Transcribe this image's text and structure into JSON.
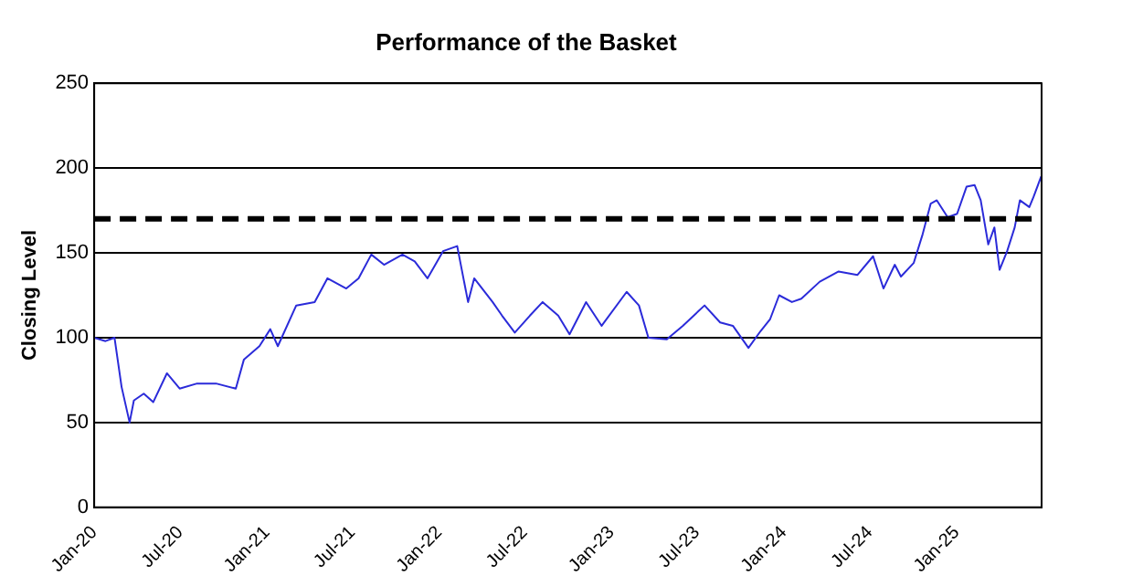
{
  "chart_data": {
    "type": "line",
    "title": "Performance of the Basket",
    "ylabel": "Closing Level",
    "x": [
      "2020-01-01",
      "2020-01-25",
      "2020-02-13",
      "2020-02-28",
      "2020-03-16",
      "2020-03-25",
      "2020-04-15",
      "2020-05-05",
      "2020-06-03",
      "2020-06-30",
      "2020-08-06",
      "2020-09-15",
      "2020-10-27",
      "2020-11-13",
      "2020-12-16",
      "2021-01-08",
      "2021-01-24",
      "2021-03-04",
      "2021-04-12",
      "2021-05-09",
      "2021-06-18",
      "2021-07-14",
      "2021-08-10",
      "2021-09-06",
      "2021-10-15",
      "2021-11-10",
      "2021-12-07",
      "2022-01-09",
      "2022-02-08",
      "2022-03-03",
      "2022-03-16",
      "2022-04-24",
      "2022-05-14",
      "2022-06-10",
      "2022-07-12",
      "2022-08-08",
      "2022-09-10",
      "2022-10-04",
      "2022-11-08",
      "2022-12-11",
      "2023-02-02",
      "2023-02-28",
      "2023-03-20",
      "2023-04-28",
      "2023-06-01",
      "2023-07-17",
      "2023-08-19",
      "2023-09-15",
      "2023-10-18",
      "2023-11-13",
      "2023-12-03",
      "2023-12-22",
      "2024-01-18",
      "2024-02-07",
      "2024-03-17",
      "2024-04-26",
      "2024-06-05",
      "2024-07-08",
      "2024-07-30",
      "2024-08-23",
      "2024-09-05",
      "2024-10-02",
      "2024-10-21",
      "2024-11-07",
      "2024-11-20",
      "2024-12-13",
      "2025-01-02",
      "2025-01-22",
      "2025-02-08",
      "2025-02-21",
      "2025-03-09",
      "2025-03-22",
      "2025-04-02",
      "2025-04-18",
      "2025-05-04",
      "2025-05-15",
      "2025-06-04",
      "2025-06-13",
      "2025-06-29"
    ],
    "series": [
      {
        "color": "#2b2bd9",
        "values": [
          100,
          98,
          100,
          71,
          50,
          63,
          67,
          62,
          79,
          70,
          73,
          73,
          70,
          87,
          95,
          105,
          95,
          119,
          121,
          135,
          129,
          135,
          149,
          143,
          149,
          145,
          135,
          151,
          154,
          121,
          135,
          121,
          113,
          103,
          113,
          121,
          113,
          102,
          121,
          107,
          127,
          119,
          100,
          99,
          107,
          119,
          109,
          107,
          94,
          104,
          111,
          125,
          121,
          123,
          133,
          139,
          137,
          148,
          129,
          143,
          136,
          144,
          161,
          179,
          181,
          171,
          173,
          189,
          190,
          181,
          155,
          165,
          140,
          151,
          165,
          181,
          177,
          183,
          195
        ]
      }
    ],
    "xlim": [
      "2020-01-01",
      "2025-06-30"
    ],
    "xticks": [
      {
        "value": "2020-01-01",
        "label": "Jan-20"
      },
      {
        "value": "2020-07-01",
        "label": "Jul-20"
      },
      {
        "value": "2021-01-01",
        "label": "Jan-21"
      },
      {
        "value": "2021-07-01",
        "label": "Jul-21"
      },
      {
        "value": "2022-01-01",
        "label": "Jan-22"
      },
      {
        "value": "2022-07-01",
        "label": "Jul-22"
      },
      {
        "value": "2023-01-01",
        "label": "Jan-23"
      },
      {
        "value": "2023-07-01",
        "label": "Jul-23"
      },
      {
        "value": "2024-01-01",
        "label": "Jan-24"
      },
      {
        "value": "2024-07-01",
        "label": "Jul-24"
      },
      {
        "value": "2025-01-01",
        "label": "Jan-25"
      }
    ],
    "ylim": [
      0,
      250
    ],
    "yticks": [
      0,
      50,
      100,
      150,
      200,
      250
    ],
    "ref_lines": [
      {
        "axis": "y",
        "value": 170,
        "color": "#000000",
        "line_style": "dashed"
      }
    ],
    "grid": "y",
    "legend": false,
    "marker": "none",
    "line_style": "solid"
  }
}
